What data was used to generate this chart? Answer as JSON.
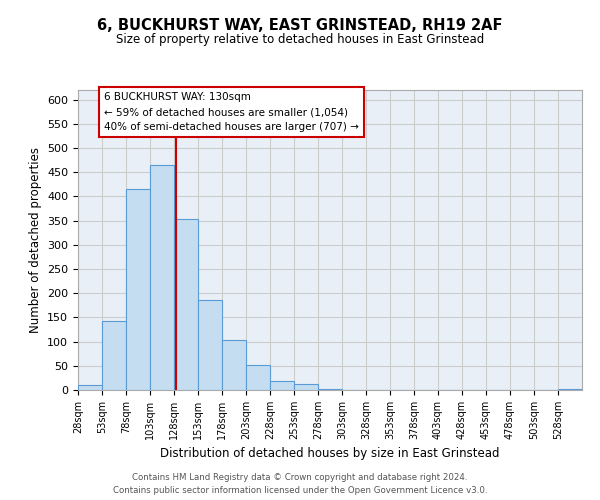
{
  "title": "6, BUCKHURST WAY, EAST GRINSTEAD, RH19 2AF",
  "subtitle": "Size of property relative to detached houses in East Grinstead",
  "xlabel": "Distribution of detached houses by size in East Grinstead",
  "ylabel": "Number of detached properties",
  "bin_edges": [
    28,
    53,
    78,
    103,
    128,
    153,
    178,
    203,
    228,
    253,
    278,
    303,
    328,
    353,
    378,
    403,
    428,
    453,
    478,
    503,
    528,
    553
  ],
  "bar_heights": [
    10,
    143,
    415,
    465,
    353,
    185,
    103,
    52,
    18,
    13,
    2,
    0,
    0,
    0,
    0,
    0,
    0,
    0,
    0,
    0,
    2
  ],
  "bar_color": "#c5ddf0",
  "bar_edge_color": "#5b9bd5",
  "property_size": 130,
  "vline_color": "#cc0000",
  "annotation_line1": "6 BUCKHURST WAY: 130sqm",
  "annotation_line2": "← 59% of detached houses are smaller (1,054)",
  "annotation_line3": "40% of semi-detached houses are larger (707) →",
  "annotation_box_color": "#ffffff",
  "annotation_box_edge_color": "#cc0000",
  "ylim": [
    0,
    620
  ],
  "yticks": [
    0,
    50,
    100,
    150,
    200,
    250,
    300,
    350,
    400,
    450,
    500,
    550,
    600
  ],
  "grid_color": "#cccccc",
  "background_color": "#e8eff7",
  "footer_line1": "Contains HM Land Registry data © Crown copyright and database right 2024.",
  "footer_line2": "Contains public sector information licensed under the Open Government Licence v3.0."
}
